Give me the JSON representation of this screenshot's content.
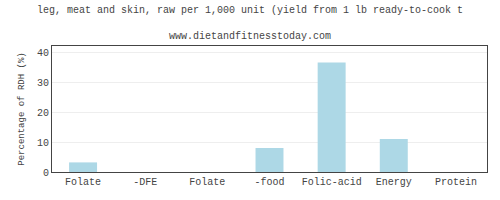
{
  "chart_data": {
    "type": "bar",
    "title": "leg, meat and skin, raw per 1,000 unit (yield from 1 lb ready-to-cook t",
    "subtitle": "www.dietandfitnesstoday.com",
    "categories": [
      "Folate",
      "-DFE",
      "Folate",
      "-food",
      "Folic-acid",
      "Energy",
      "Protein"
    ],
    "values": [
      3.2,
      0.0,
      0.0,
      8.0,
      36.5,
      11.0,
      0.0
    ],
    "color": "#add8e6",
    "ylabel": "Percentage of RDH (%)",
    "ylim": [
      0,
      42
    ],
    "yticks": [
      0,
      10,
      20,
      30,
      40
    ],
    "grid": true
  }
}
